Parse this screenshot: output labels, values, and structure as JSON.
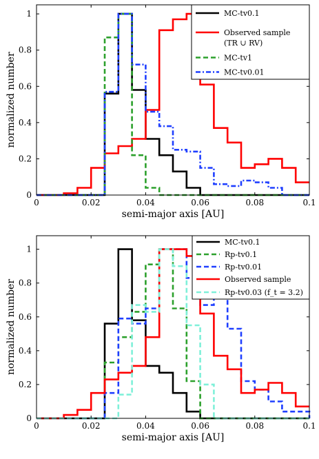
{
  "chart_data": [
    {
      "type": "histogram",
      "xlabel": "semi-major axis [AU]",
      "ylabel": "normalized number",
      "xlim": [
        0,
        0.1
      ],
      "ylim": [
        0,
        1.05
      ],
      "xticks": [
        "0",
        "0.02",
        "0.04",
        "0.06",
        "0.08",
        "0.1"
      ],
      "yticks": [
        "0",
        "0.2",
        "0.4",
        "0.6",
        "0.8",
        "1"
      ],
      "legend_position": "top-right",
      "series": [
        {
          "name": "MC-tv0.1",
          "color": "#000000",
          "style": "solid",
          "x": [
            0,
            0.025,
            0.03,
            0.035,
            0.04,
            0.045,
            0.05,
            0.055,
            0.06,
            0.1
          ],
          "values": [
            0,
            0.56,
            1.0,
            0.58,
            0.31,
            0.22,
            0.13,
            0.04,
            0,
            0
          ]
        },
        {
          "name": "Observed sample",
          "name_line2": "(TR ∪ RV)",
          "color": "#ff0000",
          "style": "solid",
          "x": [
            0,
            0.01,
            0.015,
            0.02,
            0.025,
            0.03,
            0.035,
            0.04,
            0.045,
            0.05,
            0.055,
            0.06,
            0.065,
            0.07,
            0.075,
            0.08,
            0.085,
            0.09,
            0.095,
            0.1
          ],
          "values": [
            0,
            0.01,
            0.04,
            0.15,
            0.23,
            0.27,
            0.31,
            0.47,
            0.91,
            0.97,
            1.0,
            0.61,
            0.37,
            0.29,
            0.15,
            0.17,
            0.2,
            0.15,
            0.07,
            0.07
          ]
        },
        {
          "name": "MC-tv1",
          "color": "#2ca02c",
          "style": "dashed",
          "x": [
            0,
            0.025,
            0.03,
            0.035,
            0.04,
            0.045,
            0.1
          ],
          "values": [
            0,
            0.87,
            1.0,
            0.22,
            0.04,
            0,
            0
          ]
        },
        {
          "name": "MC-tv0.01",
          "color": "#1f3fff",
          "style": "dashdot",
          "x": [
            0,
            0.025,
            0.03,
            0.035,
            0.04,
            0.045,
            0.05,
            0.055,
            0.06,
            0.065,
            0.07,
            0.075,
            0.08,
            0.085,
            0.09,
            0.1
          ],
          "values": [
            0,
            0.57,
            1.0,
            0.72,
            0.46,
            0.38,
            0.25,
            0.24,
            0.15,
            0.06,
            0.05,
            0.08,
            0.07,
            0.04,
            0,
            0
          ]
        }
      ]
    },
    {
      "type": "histogram",
      "xlabel": "semi-major axis [AU]",
      "ylabel": "normalized number",
      "xlim": [
        0,
        0.1
      ],
      "ylim": [
        0,
        1.08
      ],
      "xticks": [
        "0",
        "0.02",
        "0.04",
        "0.06",
        "0.08",
        "0.1"
      ],
      "yticks": [
        "0",
        "0.2",
        "0.4",
        "0.6",
        "0.8",
        "1"
      ],
      "legend_position": "top-right",
      "series": [
        {
          "name": "MC-tv0.1",
          "color": "#000000",
          "style": "solid",
          "x": [
            0,
            0.025,
            0.03,
            0.035,
            0.04,
            0.045,
            0.05,
            0.055,
            0.06,
            0.1
          ],
          "values": [
            0,
            0.56,
            1.0,
            0.58,
            0.31,
            0.27,
            0.15,
            0.04,
            0,
            0
          ]
        },
        {
          "name": "Rp-tv0.1",
          "color": "#2ca02c",
          "style": "dashed",
          "x": [
            0,
            0.025,
            0.03,
            0.035,
            0.04,
            0.045,
            0.05,
            0.055,
            0.06,
            0.1
          ],
          "values": [
            0,
            0.33,
            0.48,
            0.63,
            0.91,
            1.0,
            0.65,
            0.22,
            0,
            0
          ]
        },
        {
          "name": "Rp-tv0.01",
          "color": "#1f3fff",
          "style": "dashed",
          "x": [
            0,
            0.025,
            0.03,
            0.035,
            0.04,
            0.045,
            0.05,
            0.055,
            0.06,
            0.065,
            0.07,
            0.075,
            0.08,
            0.085,
            0.09,
            0.1
          ],
          "values": [
            0,
            0.15,
            0.59,
            0.56,
            0.65,
            1.0,
            1.0,
            0.83,
            0.67,
            0.77,
            0.53,
            0.22,
            0.17,
            0.1,
            0.04,
            0
          ]
        },
        {
          "name": "Observed sample",
          "color": "#ff0000",
          "style": "solid",
          "x": [
            0,
            0.01,
            0.015,
            0.02,
            0.025,
            0.03,
            0.035,
            0.04,
            0.045,
            0.05,
            0.055,
            0.06,
            0.065,
            0.07,
            0.075,
            0.08,
            0.085,
            0.09,
            0.095,
            0.1
          ],
          "values": [
            0,
            0.02,
            0.05,
            0.15,
            0.23,
            0.27,
            0.31,
            0.48,
            1.0,
            1.0,
            0.96,
            0.62,
            0.37,
            0.29,
            0.15,
            0.17,
            0.21,
            0.15,
            0.07,
            0.07
          ]
        },
        {
          "name": "Rp-tv0.03 (f_t = 3.2)",
          "color": "#7ff0d9",
          "style": "dashed",
          "x": [
            0,
            0.03,
            0.035,
            0.04,
            0.045,
            0.05,
            0.055,
            0.06,
            0.065,
            0.1
          ],
          "values": [
            0,
            0.14,
            0.67,
            0.63,
            1.0,
            0.9,
            0.55,
            0.2,
            0,
            0
          ]
        }
      ]
    }
  ]
}
